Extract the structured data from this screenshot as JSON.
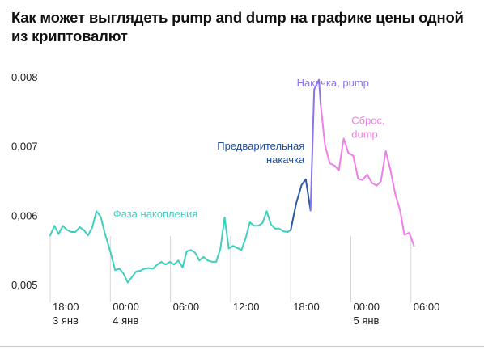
{
  "title": "Как может выглядеть pump and dump на графике цены одной из криптовалют",
  "chart_data": {
    "type": "line",
    "ylim": [
      0.005,
      0.008
    ],
    "yticks": [
      {
        "value": 0.008,
        "label": "0,008"
      },
      {
        "value": 0.007,
        "label": "0,007"
      },
      {
        "value": 0.006,
        "label": "0,006"
      },
      {
        "value": 0.005,
        "label": "0,005"
      }
    ],
    "xlim": [
      0,
      72
    ],
    "xticks": [
      {
        "x": 0,
        "time": "18:00",
        "date": "3 янв"
      },
      {
        "x": 10,
        "time": "00:00",
        "date": "4 янв"
      },
      {
        "x": 20,
        "time": "06:00",
        "date": ""
      },
      {
        "x": 30,
        "time": "12:00",
        "date": ""
      },
      {
        "x": 40,
        "time": "18:00",
        "date": ""
      },
      {
        "x": 50,
        "time": "00:00",
        "date": "5 янв"
      },
      {
        "x": 60,
        "time": "06:00",
        "date": ""
      }
    ],
    "grid": "vertical",
    "series": [
      {
        "name": "Фаза накопления",
        "color": "#3fcfbd",
        "points": [
          [
            0,
            0.00572
          ],
          [
            0.7,
            0.00586
          ],
          [
            1.4,
            0.00574
          ],
          [
            2.1,
            0.00586
          ],
          [
            2.8,
            0.0058
          ],
          [
            3.5,
            0.00577
          ],
          [
            4.2,
            0.00577
          ],
          [
            4.9,
            0.00584
          ],
          [
            5.6,
            0.0058
          ],
          [
            6.3,
            0.00572
          ],
          [
            7.0,
            0.00584
          ],
          [
            7.7,
            0.00607
          ],
          [
            8.4,
            0.00599
          ],
          [
            9.1,
            0.00575
          ],
          [
            10.1,
            0.00546
          ],
          [
            10.8,
            0.00522
          ],
          [
            11.5,
            0.00524
          ],
          [
            12.2,
            0.00517
          ],
          [
            12.9,
            0.00504
          ],
          [
            13.6,
            0.00512
          ],
          [
            14.3,
            0.0052
          ],
          [
            15.0,
            0.00521
          ],
          [
            15.7,
            0.00524
          ],
          [
            16.4,
            0.00525
          ],
          [
            17.1,
            0.00524
          ],
          [
            17.8,
            0.0053
          ],
          [
            18.5,
            0.00534
          ],
          [
            19.2,
            0.0053
          ],
          [
            19.9,
            0.00534
          ],
          [
            20.6,
            0.0053
          ],
          [
            21.3,
            0.00536
          ],
          [
            22.0,
            0.00526
          ],
          [
            22.7,
            0.00549
          ],
          [
            23.4,
            0.00551
          ],
          [
            24.1,
            0.00547
          ],
          [
            24.8,
            0.00536
          ],
          [
            25.5,
            0.00541
          ],
          [
            26.2,
            0.00536
          ],
          [
            26.9,
            0.00534
          ],
          [
            27.6,
            0.00534
          ],
          [
            28.3,
            0.00553
          ],
          [
            29.0,
            0.00598
          ],
          [
            29.7,
            0.00553
          ],
          [
            30.4,
            0.00557
          ],
          [
            31.1,
            0.00554
          ],
          [
            31.8,
            0.00551
          ],
          [
            32.5,
            0.00568
          ],
          [
            33.2,
            0.00591
          ],
          [
            33.9,
            0.00586
          ],
          [
            34.6,
            0.00586
          ],
          [
            35.3,
            0.0059
          ],
          [
            36.0,
            0.00607
          ],
          [
            36.7,
            0.00588
          ],
          [
            37.4,
            0.00582
          ],
          [
            38.1,
            0.00582
          ],
          [
            38.8,
            0.00578
          ],
          [
            39.5,
            0.00577
          ],
          [
            40.0,
            0.0058
          ]
        ]
      },
      {
        "name": "Предварительная накачка",
        "color": "#2f5aa8",
        "points": [
          [
            40.0,
            0.0058
          ],
          [
            40.9,
            0.00618
          ],
          [
            41.8,
            0.00645
          ],
          [
            42.5,
            0.00653
          ],
          [
            43.3,
            0.00608
          ]
        ]
      },
      {
        "name": "Накачка, pump",
        "color": "#8b74e6",
        "points": [
          [
            43.3,
            0.00608
          ],
          [
            43.9,
            0.00783
          ],
          [
            44.7,
            0.00797
          ],
          [
            45.0,
            0.0076
          ]
        ]
      },
      {
        "name": "Сброс, dump",
        "color": "#f07ee6",
        "points": [
          [
            45.0,
            0.0076
          ],
          [
            45.7,
            0.00702
          ],
          [
            46.5,
            0.00676
          ],
          [
            47.3,
            0.00673
          ],
          [
            48.0,
            0.00666
          ],
          [
            48.8,
            0.00712
          ],
          [
            49.6,
            0.00691
          ],
          [
            50.4,
            0.00687
          ],
          [
            51.2,
            0.00654
          ],
          [
            51.9,
            0.00652
          ],
          [
            52.7,
            0.0066
          ],
          [
            53.5,
            0.00648
          ],
          [
            54.3,
            0.00644
          ],
          [
            55.0,
            0.0065
          ],
          [
            55.8,
            0.00694
          ],
          [
            56.6,
            0.00666
          ],
          [
            57.4,
            0.00631
          ],
          [
            58.2,
            0.00608
          ],
          [
            58.9,
            0.00573
          ],
          [
            59.7,
            0.00576
          ],
          [
            60.5,
            0.00557
          ]
        ]
      }
    ],
    "annotations": [
      {
        "lines": [
          "Фаза накопления"
        ],
        "color": "#3fcfbd",
        "x": 17.5,
        "y": 0.00598,
        "anchor": "middle"
      },
      {
        "lines": [
          "Предварительная",
          "накачка"
        ],
        "color": "#1f4f9a",
        "x": 42.3,
        "y": 0.00696,
        "anchor": "end"
      },
      {
        "lines": [
          "Накачка, pump"
        ],
        "color": "#8b74e6",
        "x": 41.0,
        "y": 0.00787,
        "anchor": "start"
      },
      {
        "lines": [
          "Сброс,",
          "dump"
        ],
        "color": "#f07ee6",
        "x": 50.1,
        "y": 0.00733,
        "anchor": "start"
      }
    ]
  }
}
